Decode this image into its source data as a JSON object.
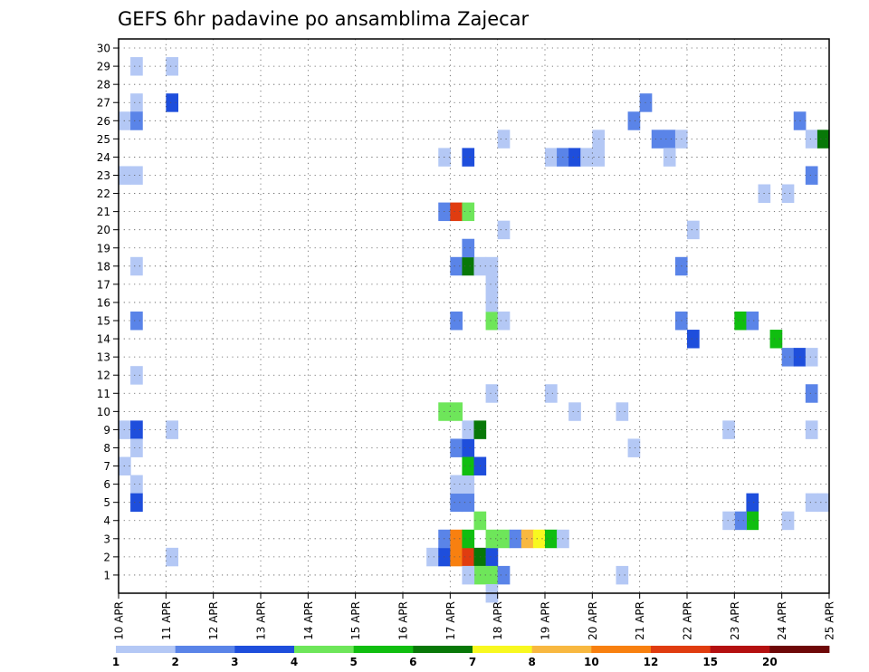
{
  "chart_data": {
    "type": "heatmap",
    "title": "GEFS 6hr padavine po ansamblima Zajecar",
    "xlabel": "",
    "ylabel": "",
    "x_ticks": [
      "10 APR",
      "11 APR",
      "12 APR",
      "13 APR",
      "14 APR",
      "15 APR",
      "16 APR",
      "17 APR",
      "18 APR",
      "19 APR",
      "20 APR",
      "21 APR",
      "22 APR",
      "23 APR",
      "24 APR",
      "25 APR"
    ],
    "y_ticks": [
      "1",
      "2",
      "3",
      "4",
      "5",
      "6",
      "7",
      "8",
      "9",
      "10",
      "11",
      "12",
      "13",
      "14",
      "15",
      "16",
      "17",
      "18",
      "19",
      "20",
      "21",
      "22",
      "23",
      "24",
      "25",
      "26",
      "27",
      "28",
      "29",
      "30"
    ],
    "ylim": [
      0,
      30
    ],
    "x_steps_per_day": 4,
    "grid": true,
    "legend": {
      "placement": "bottom",
      "labels": [
        "1",
        "2",
        "3",
        "4",
        "5",
        "6",
        "7",
        "8",
        "10",
        "12",
        "15",
        "20"
      ],
      "colors": [
        "#b4c8f5",
        "#5a84e8",
        "#1e4edc",
        "#6ee65a",
        "#10be10",
        "#087808",
        "#f8f820",
        "#f8b840",
        "#f88010",
        "#e03c10",
        "#b41010",
        "#6e0808"
      ]
    },
    "cells": [
      [
        1,
        1,
        29
      ],
      [
        1,
        1,
        27
      ],
      [
        0,
        1,
        26
      ],
      [
        1,
        2,
        26
      ],
      [
        0,
        1,
        23
      ],
      [
        1,
        1,
        23
      ],
      [
        1,
        1,
        18
      ],
      [
        1,
        2,
        15
      ],
      [
        1,
        1,
        12
      ],
      [
        0,
        1,
        9
      ],
      [
        1,
        3,
        9
      ],
      [
        1,
        1,
        8
      ],
      [
        0,
        1,
        7
      ],
      [
        1,
        1,
        6
      ],
      [
        1,
        3,
        5
      ],
      [
        1,
        1,
        9
      ],
      [
        1,
        1,
        2
      ],
      [
        6,
        2,
        2
      ],
      [
        7,
        3,
        2
      ],
      [
        7,
        2,
        3
      ],
      [
        7,
        4,
        3
      ],
      [
        7,
        3,
        4
      ],
      [
        7,
        3,
        5
      ],
      [
        7,
        3,
        6
      ],
      [
        7,
        2,
        5
      ],
      [
        7,
        1,
        6
      ],
      [
        7,
        1,
        8
      ],
      [
        7,
        1,
        11
      ],
      [
        8,
        1,
        24
      ],
      [
        8,
        1,
        20
      ],
      [
        8,
        1,
        15
      ],
      [
        8,
        4,
        2
      ],
      [
        8,
        1,
        3
      ],
      [
        8,
        2,
        3
      ],
      [
        8,
        2,
        5
      ],
      [
        8,
        1,
        6
      ],
      [
        8,
        1,
        8
      ],
      [
        8,
        2,
        9
      ],
      [
        8,
        1,
        10
      ],
      [
        8,
        2,
        10
      ],
      [
        8,
        2,
        11
      ],
      [
        8,
        1,
        12
      ],
      [
        8,
        2,
        13
      ],
      [
        8,
        5,
        13
      ],
      [
        8,
        1,
        14
      ],
      [
        8,
        2,
        14
      ],
      [
        8,
        2,
        15
      ],
      [
        8,
        5,
        15
      ],
      [
        8,
        1,
        16
      ],
      [
        9,
        4,
        2
      ],
      [
        9,
        5,
        3
      ],
      [
        9,
        1,
        3
      ],
      [
        9,
        2,
        4
      ],
      [
        9,
        2,
        5
      ],
      [
        9,
        4,
        5
      ],
      [
        9,
        3,
        6
      ],
      [
        9,
        3,
        7
      ],
      [
        9,
        2,
        8
      ],
      [
        9,
        1,
        8
      ],
      [
        9,
        5,
        9
      ],
      [
        9,
        5,
        10
      ],
      [
        9,
        5,
        11
      ],
      [
        9,
        2,
        12
      ],
      [
        9,
        1,
        13
      ],
      [
        9,
        2,
        16
      ],
      [
        9,
        1,
        17
      ],
      [
        9,
        1,
        18
      ],
      [
        9,
        1,
        19
      ],
      [
        9,
        4,
        2
      ],
      [
        9,
        1,
        3
      ],
      [
        9,
        1,
        19
      ],
      [
        9,
        2,
        21
      ],
      [
        9,
        1,
        24
      ],
      [
        9,
        4,
        3
      ],
      [
        9,
        5,
        3
      ],
      [
        10,
        1,
        2
      ],
      [
        10,
        1,
        3
      ],
      [
        10,
        1,
        4
      ],
      [
        10,
        1,
        5
      ],
      [
        10,
        1,
        6
      ],
      [
        10,
        1,
        9
      ],
      [
        10,
        1,
        11
      ],
      [
        10,
        1,
        12
      ],
      [
        10,
        1,
        16
      ],
      [
        10,
        1,
        18
      ],
      [
        10,
        1,
        19
      ],
      [
        10,
        1,
        23
      ],
      [
        10,
        1,
        24
      ],
      [
        10,
        1,
        25
      ],
      [
        10,
        1,
        27
      ],
      [
        11,
        1,
        4
      ],
      [
        11,
        1,
        5
      ],
      [
        11,
        1,
        9
      ],
      [
        11,
        1,
        10
      ],
      [
        11,
        1,
        13
      ],
      [
        11,
        1,
        15
      ],
      [
        11,
        1,
        17
      ],
      [
        11,
        1,
        21
      ],
      [
        11,
        1,
        23
      ],
      [
        11,
        1,
        24
      ],
      [
        11,
        1,
        25
      ],
      [
        11,
        1,
        27
      ],
      [
        12,
        1,
        25
      ],
      [
        12,
        2,
        26
      ]
    ]
  }
}
